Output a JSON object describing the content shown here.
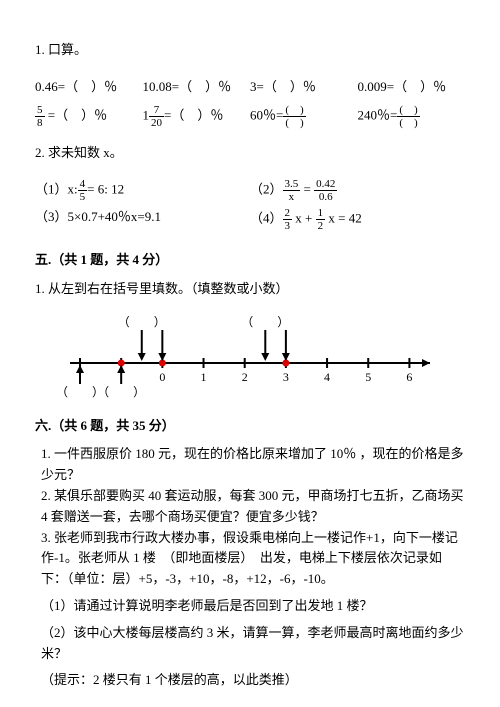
{
  "q1": {
    "title": "1. 口算。",
    "items": [
      {
        "a": "0.46=（　）％",
        "b": "10.08=（　）％",
        "c": "3=（　）％",
        "d": "0.009=（　）％"
      },
      {
        "a_frac": {
          "n": "5",
          "d": "8"
        },
        "a_tail": " =（　）％",
        "b_pre": "1",
        "b_frac": {
          "n": "7",
          "d": "20"
        },
        "b_tail": "=（　）％",
        "c_pre": "60％=",
        "c_frac": {
          "n": "(　)",
          "d": "(　)"
        },
        "d_pre": "240％=",
        "d_frac": {
          "n": "(　)",
          "d": "(　)"
        }
      }
    ]
  },
  "q2": {
    "title": "2. 求未知数 x。",
    "items": [
      {
        "label": "（1）",
        "pre": "x:",
        "frac": {
          "n": "4",
          "d": "5"
        },
        "tail": "= 6: 12"
      },
      {
        "label": "（2）",
        "frac1": {
          "n": "3.5",
          "d": "x"
        },
        "mid": " = ",
        "frac2": {
          "n": "0.42",
          "d": "0.6"
        }
      },
      {
        "label": "（3）",
        "text": "5×0.7+40％x=9.1"
      },
      {
        "label": "（4）",
        "frac1": {
          "n": "2",
          "d": "3"
        },
        "mid1": " x + ",
        "frac2": {
          "n": "1",
          "d": "2"
        },
        "mid2": " x = 42"
      }
    ]
  },
  "sec5": {
    "header": "五.（共 1 题，共 4 分）",
    "q": "1. 从左到右在括号里填数。（填整数或小数）",
    "axis": {
      "ticks": [
        -2,
        -1,
        0,
        1,
        2,
        3,
        4,
        5,
        6
      ],
      "show_labels": [
        0,
        1,
        2,
        3,
        4,
        5,
        6
      ],
      "brackets_top": [
        -0.5,
        2.5
      ],
      "brackets_bot": [
        -2,
        -1
      ],
      "red_dots": [
        -1,
        0,
        3
      ],
      "arrows_top": [
        -0.5,
        0,
        2.5,
        3
      ],
      "arrows_bot": [
        -2,
        -1
      ]
    }
  },
  "sec6": {
    "header": "六.（共 6 题，共 35 分）",
    "q1": "1. 一件西服原价 180 元，现在的价格比原来增加了 10％ ，现在的价格是多少元？",
    "q2": "2. 某俱乐部要购买 40 套运动服，每套 300 元，甲商场打七五折，乙商场买 4 套赠送一套，去哪个商场买便宜？便宜多少钱？",
    "q3a": "3. 张老师到我市行政大楼办事，假设乘电梯向上一楼记作+1，向下一楼记作-1。张老师从 1 楼　（即地面楼层）　出发，电梯上下楼层依次记录如下：（单位：层）+5，-3，+10，-8，+12，-6，-10。",
    "q3b": "（1）请通过计算说明李老师最后是否回到了出发地 1 楼？",
    "q3c": "（2）该中心大楼每层楼高约 3 米，请算一算，李老师最高时离地面约多少米？",
    "q3d": "（提示：2 楼只有 1 个楼层的高，以此类推）"
  }
}
